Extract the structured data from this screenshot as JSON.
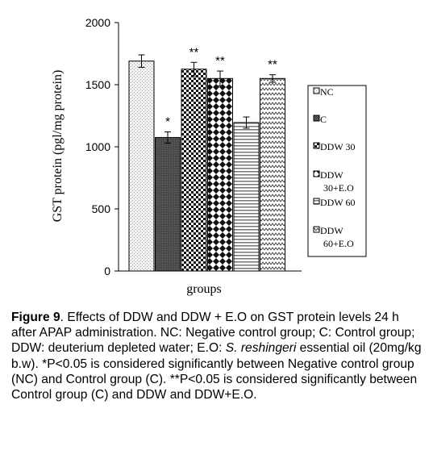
{
  "chart_data": {
    "type": "bar",
    "title": "",
    "xlabel": "groups",
    "ylabel": "GST protein (pgl/mg protein)",
    "ylim": [
      0,
      2000
    ],
    "yticks": [
      "0",
      "500",
      "1000",
      "1500",
      "2000"
    ],
    "categories": [
      "NC",
      "C",
      "DDW 30",
      "DDW 30+E.O",
      "DDW 60",
      "DDW 60+E.O"
    ],
    "values": [
      1690,
      1075,
      1625,
      1550,
      1195,
      1550
    ],
    "errors": [
      50,
      45,
      55,
      60,
      45,
      30
    ],
    "significance": [
      "",
      "*",
      "**",
      "**",
      "",
      "**"
    ],
    "legend": {
      "position": "right",
      "entries": [
        {
          "lines": [
            "NC"
          ]
        },
        {
          "lines": [
            "C"
          ]
        },
        {
          "lines": [
            "DDW 30"
          ]
        },
        {
          "lines": [
            "DDW",
            "30+E.O"
          ]
        },
        {
          "lines": [
            "DDW 60"
          ]
        },
        {
          "lines": [
            "DDW",
            "60+E.O"
          ]
        }
      ]
    },
    "patterns": [
      "dots-light",
      "dark-solid",
      "checker",
      "diamond",
      "stripes-h",
      "zigzag"
    ]
  },
  "caption": {
    "label": "Figure 9",
    "text_1": ". Effects of DDW and DDW + E.O on GST protein levels 24 h after APAP administration. NC: Negative control group; C: Control group; DDW: deuterium depleted water; E.O: ",
    "species": "S. reshingeri",
    "text_2": " essential oil (20mg/kg b.w). *P<0.05 is considered significantly between Negative control group (NC) and Control group (C). **P<0.05 is considered significantly between Control group (C) and DDW and DDW+E.O."
  }
}
